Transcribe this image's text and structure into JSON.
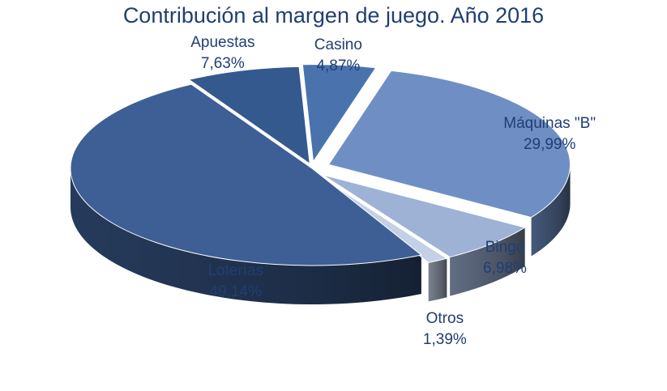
{
  "chart_data": {
    "type": "pie",
    "title": "Contribución al margen de juego. Año 2016",
    "slices": [
      {
        "label": "Máquinas \"B\"",
        "value": 29.99,
        "display": "29,99%",
        "color": "#6f8fc4"
      },
      {
        "label": "Bingo",
        "value": 6.98,
        "display": "6,98%",
        "color": "#9eb2d6"
      },
      {
        "label": "Otros",
        "value": 1.39,
        "display": "1,39%",
        "color": "#c3d0e6"
      },
      {
        "label": "Loterías",
        "value": 49.14,
        "display": "49,14%",
        "color": "#3d5f95"
      },
      {
        "label": "Apuestas",
        "value": 7.63,
        "display": "7,63%",
        "color": "#34598f"
      },
      {
        "label": "Casino",
        "value": 4.87,
        "display": "4,87%",
        "color": "#4a73ae"
      }
    ],
    "legend": "none",
    "style": "3d-exploded"
  }
}
